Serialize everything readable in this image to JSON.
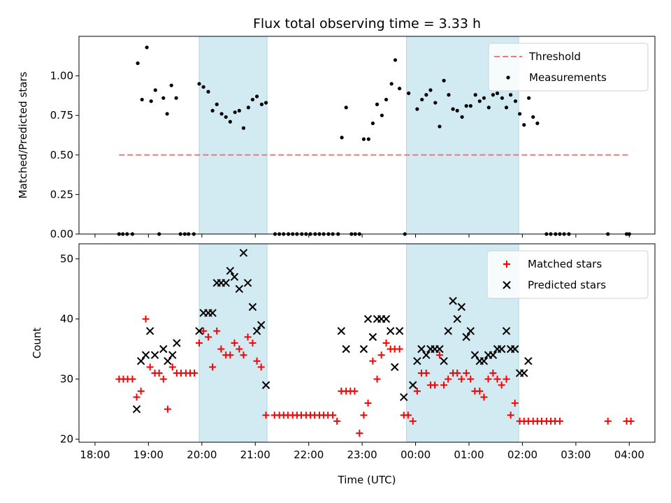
{
  "chart_data": [
    {
      "type": "scatter",
      "title": "Flux total observing time = 3.33 h",
      "ylabel": "Matched/Predicted stars",
      "xlabel": "",
      "x_unit": "hours since 18:00 UTC",
      "xlim": [
        -0.3,
        10.48
      ],
      "ylim": [
        0,
        1.25
      ],
      "yticks": [
        "0.00",
        "0.25",
        "0.50",
        "0.75",
        "1.00"
      ],
      "shaded_intervals": [
        [
          1.95,
          3.22
        ],
        [
          5.83,
          7.93
        ]
      ],
      "legend": {
        "position": "upper-right",
        "entries": [
          "Threshold",
          "Measurements"
        ]
      },
      "series": [
        {
          "name": "Threshold",
          "kind": "dashed-line",
          "color": "#f07878",
          "x": [
            0.45,
            10.0
          ],
          "y": [
            0.5,
            0.5
          ]
        },
        {
          "name": "Measurements",
          "kind": "dots",
          "color": "#000000",
          "points": [
            [
              0.45,
              0
            ],
            [
              0.52,
              0
            ],
            [
              0.6,
              0
            ],
            [
              0.7,
              0
            ],
            [
              0.8,
              1.08
            ],
            [
              0.88,
              0.85
            ],
            [
              0.97,
              1.18
            ],
            [
              1.05,
              0.84
            ],
            [
              1.13,
              0.91
            ],
            [
              1.2,
              0
            ],
            [
              1.28,
              0.86
            ],
            [
              1.35,
              0.76
            ],
            [
              1.43,
              0.94
            ],
            [
              1.52,
              0.86
            ],
            [
              1.6,
              0
            ],
            [
              1.68,
              0
            ],
            [
              1.75,
              0
            ],
            [
              1.85,
              0
            ],
            [
              1.95,
              0.95
            ],
            [
              2.03,
              0.93
            ],
            [
              2.12,
              0.9
            ],
            [
              2.2,
              0.78
            ],
            [
              2.28,
              0.82
            ],
            [
              2.37,
              0.76
            ],
            [
              2.45,
              0.74
            ],
            [
              2.53,
              0.71
            ],
            [
              2.62,
              0.77
            ],
            [
              2.7,
              0.78
            ],
            [
              2.78,
              0.67
            ],
            [
              2.87,
              0.8
            ],
            [
              2.95,
              0.85
            ],
            [
              3.03,
              0.87
            ],
            [
              3.12,
              0.82
            ],
            [
              3.2,
              0.83
            ],
            [
              3.37,
              0
            ],
            [
              3.45,
              0
            ],
            [
              3.53,
              0
            ],
            [
              3.62,
              0
            ],
            [
              3.7,
              0
            ],
            [
              3.78,
              0
            ],
            [
              3.87,
              0
            ],
            [
              3.95,
              0
            ],
            [
              4.03,
              0
            ],
            [
              4.12,
              0
            ],
            [
              4.2,
              0
            ],
            [
              4.28,
              0
            ],
            [
              4.37,
              0
            ],
            [
              4.45,
              0
            ],
            [
              4.55,
              0
            ],
            [
              4.62,
              0.61
            ],
            [
              4.7,
              0.8
            ],
            [
              4.8,
              0
            ],
            [
              4.87,
              0
            ],
            [
              4.95,
              0
            ],
            [
              5.03,
              0.6
            ],
            [
              5.12,
              0.6
            ],
            [
              5.2,
              0.7
            ],
            [
              5.28,
              0.82
            ],
            [
              5.37,
              0.75
            ],
            [
              5.45,
              0.85
            ],
            [
              5.55,
              0.95
            ],
            [
              5.62,
              1.1
            ],
            [
              5.7,
              0.92
            ],
            [
              5.8,
              0
            ],
            [
              5.87,
              0.89
            ],
            [
              6.03,
              0.79
            ],
            [
              6.12,
              0.85
            ],
            [
              6.2,
              0.88
            ],
            [
              6.28,
              0.91
            ],
            [
              6.37,
              0.83
            ],
            [
              6.45,
              0.68
            ],
            [
              6.53,
              0.97
            ],
            [
              6.62,
              0.88
            ],
            [
              6.7,
              0.79
            ],
            [
              6.78,
              0.78
            ],
            [
              6.87,
              0.74
            ],
            [
              6.95,
              0.81
            ],
            [
              7.03,
              0.81
            ],
            [
              7.12,
              0.88
            ],
            [
              7.2,
              0.84
            ],
            [
              7.28,
              0.86
            ],
            [
              7.37,
              0.8
            ],
            [
              7.45,
              0.88
            ],
            [
              7.53,
              0.89
            ],
            [
              7.62,
              0.86
            ],
            [
              7.7,
              0.8
            ],
            [
              7.78,
              0.88
            ],
            [
              7.87,
              0.84
            ],
            [
              7.95,
              0.76
            ],
            [
              8.03,
              0.69
            ],
            [
              8.12,
              0.86
            ],
            [
              8.2,
              0.74
            ],
            [
              8.28,
              0.7
            ],
            [
              8.45,
              0
            ],
            [
              8.53,
              0
            ],
            [
              8.62,
              0
            ],
            [
              8.7,
              0
            ],
            [
              8.78,
              0
            ],
            [
              8.87,
              0
            ],
            [
              9.6,
              0
            ],
            [
              9.95,
              0
            ],
            [
              10.0,
              0
            ]
          ]
        }
      ]
    },
    {
      "type": "scatter",
      "title": "",
      "ylabel": "Count",
      "xlabel": "Time (UTC)",
      "x_unit": "hours since 18:00 UTC",
      "xlim": [
        -0.3,
        10.48
      ],
      "ylim": [
        19.5,
        52.5
      ],
      "yticks": [
        "20",
        "30",
        "40",
        "50"
      ],
      "xticks": [
        "18:00",
        "19:00",
        "20:00",
        "21:00",
        "22:00",
        "23:00",
        "00:00",
        "01:00",
        "02:00",
        "03:00",
        "04:00"
      ],
      "shaded_intervals": [
        [
          1.95,
          3.22
        ],
        [
          5.83,
          7.93
        ]
      ],
      "legend": {
        "position": "upper-right",
        "entries": [
          "Matched stars",
          "Predicted stars"
        ]
      },
      "series": [
        {
          "name": "Matched stars",
          "kind": "plus",
          "color": "#ff0000",
          "points": [
            [
              0.45,
              30
            ],
            [
              0.53,
              30
            ],
            [
              0.61,
              30
            ],
            [
              0.7,
              30
            ],
            [
              0.78,
              27
            ],
            [
              0.86,
              28
            ],
            [
              0.95,
              40
            ],
            [
              1.03,
              32
            ],
            [
              1.12,
              31
            ],
            [
              1.2,
              31
            ],
            [
              1.28,
              30
            ],
            [
              1.36,
              25
            ],
            [
              1.45,
              32
            ],
            [
              1.53,
              31
            ],
            [
              1.61,
              31
            ],
            [
              1.7,
              31
            ],
            [
              1.78,
              31
            ],
            [
              1.86,
              31
            ],
            [
              1.95,
              36
            ],
            [
              2.03,
              38
            ],
            [
              2.12,
              37
            ],
            [
              2.2,
              32
            ],
            [
              2.28,
              38
            ],
            [
              2.36,
              35
            ],
            [
              2.45,
              34
            ],
            [
              2.53,
              34
            ],
            [
              2.61,
              36
            ],
            [
              2.7,
              35
            ],
            [
              2.78,
              34
            ],
            [
              2.86,
              37
            ],
            [
              2.95,
              36
            ],
            [
              3.03,
              33
            ],
            [
              3.11,
              32
            ],
            [
              3.2,
              24
            ],
            [
              3.36,
              24
            ],
            [
              3.45,
              24
            ],
            [
              3.53,
              24
            ],
            [
              3.61,
              24
            ],
            [
              3.7,
              24
            ],
            [
              3.78,
              24
            ],
            [
              3.86,
              24
            ],
            [
              3.95,
              24
            ],
            [
              4.03,
              24
            ],
            [
              4.11,
              24
            ],
            [
              4.2,
              24
            ],
            [
              4.28,
              24
            ],
            [
              4.36,
              24
            ],
            [
              4.45,
              24
            ],
            [
              4.53,
              23
            ],
            [
              4.61,
              28
            ],
            [
              4.7,
              28
            ],
            [
              4.78,
              28
            ],
            [
              4.86,
              28
            ],
            [
              4.95,
              21
            ],
            [
              5.03,
              24
            ],
            [
              5.11,
              26
            ],
            [
              5.2,
              33
            ],
            [
              5.28,
              30
            ],
            [
              5.36,
              34
            ],
            [
              5.45,
              36
            ],
            [
              5.53,
              35
            ],
            [
              5.61,
              35
            ],
            [
              5.7,
              35
            ],
            [
              5.78,
              24
            ],
            [
              5.86,
              24
            ],
            [
              5.95,
              23
            ],
            [
              6.03,
              28
            ],
            [
              6.11,
              31
            ],
            [
              6.2,
              31
            ],
            [
              6.28,
              29
            ],
            [
              6.36,
              29
            ],
            [
              6.45,
              34
            ],
            [
              6.53,
              29
            ],
            [
              6.61,
              30
            ],
            [
              6.7,
              31
            ],
            [
              6.78,
              31
            ],
            [
              6.86,
              30
            ],
            [
              6.95,
              31
            ],
            [
              7.03,
              30
            ],
            [
              7.11,
              28
            ],
            [
              7.2,
              28
            ],
            [
              7.28,
              27
            ],
            [
              7.36,
              30
            ],
            [
              7.45,
              31
            ],
            [
              7.53,
              30
            ],
            [
              7.61,
              29
            ],
            [
              7.7,
              30
            ],
            [
              7.78,
              24
            ],
            [
              7.86,
              26
            ],
            [
              7.95,
              23
            ],
            [
              8.03,
              23
            ],
            [
              8.11,
              23
            ],
            [
              8.2,
              23
            ],
            [
              8.28,
              23
            ],
            [
              8.36,
              23
            ],
            [
              8.45,
              23
            ],
            [
              8.53,
              23
            ],
            [
              8.61,
              23
            ],
            [
              8.7,
              23
            ],
            [
              9.6,
              23
            ],
            [
              9.95,
              23
            ],
            [
              10.03,
              23
            ]
          ]
        },
        {
          "name": "Predicted stars",
          "kind": "x",
          "color": "#000000",
          "points": [
            [
              0.78,
              25
            ],
            [
              0.86,
              33
            ],
            [
              0.95,
              34
            ],
            [
              1.03,
              38
            ],
            [
              1.12,
              34
            ],
            [
              1.28,
              35
            ],
            [
              1.36,
              33
            ],
            [
              1.45,
              34
            ],
            [
              1.53,
              36
            ],
            [
              1.95,
              38
            ],
            [
              2.03,
              41
            ],
            [
              2.12,
              41
            ],
            [
              2.2,
              41
            ],
            [
              2.28,
              46
            ],
            [
              2.36,
              46
            ],
            [
              2.45,
              46
            ],
            [
              2.53,
              48
            ],
            [
              2.61,
              47
            ],
            [
              2.7,
              45
            ],
            [
              2.78,
              51
            ],
            [
              2.86,
              46
            ],
            [
              2.95,
              42
            ],
            [
              3.03,
              38
            ],
            [
              3.11,
              39
            ],
            [
              3.2,
              29
            ],
            [
              4.61,
              38
            ],
            [
              4.7,
              35
            ],
            [
              5.03,
              35
            ],
            [
              5.11,
              40
            ],
            [
              5.2,
              37
            ],
            [
              5.28,
              40
            ],
            [
              5.36,
              40
            ],
            [
              5.45,
              40
            ],
            [
              5.53,
              38
            ],
            [
              5.61,
              32
            ],
            [
              5.7,
              38
            ],
            [
              5.78,
              27
            ],
            [
              5.95,
              29
            ],
            [
              6.03,
              33
            ],
            [
              6.11,
              35
            ],
            [
              6.2,
              34
            ],
            [
              6.28,
              35
            ],
            [
              6.36,
              35
            ],
            [
              6.45,
              35
            ],
            [
              6.53,
              33
            ],
            [
              6.61,
              38
            ],
            [
              6.7,
              43
            ],
            [
              6.78,
              40
            ],
            [
              6.86,
              42
            ],
            [
              6.95,
              37
            ],
            [
              7.03,
              38
            ],
            [
              7.11,
              34
            ],
            [
              7.2,
              33
            ],
            [
              7.28,
              33
            ],
            [
              7.36,
              34
            ],
            [
              7.45,
              34
            ],
            [
              7.53,
              35
            ],
            [
              7.61,
              35
            ],
            [
              7.7,
              38
            ],
            [
              7.78,
              35
            ],
            [
              7.86,
              35
            ],
            [
              7.95,
              31
            ],
            [
              8.03,
              31
            ],
            [
              8.11,
              33
            ]
          ]
        }
      ]
    }
  ]
}
